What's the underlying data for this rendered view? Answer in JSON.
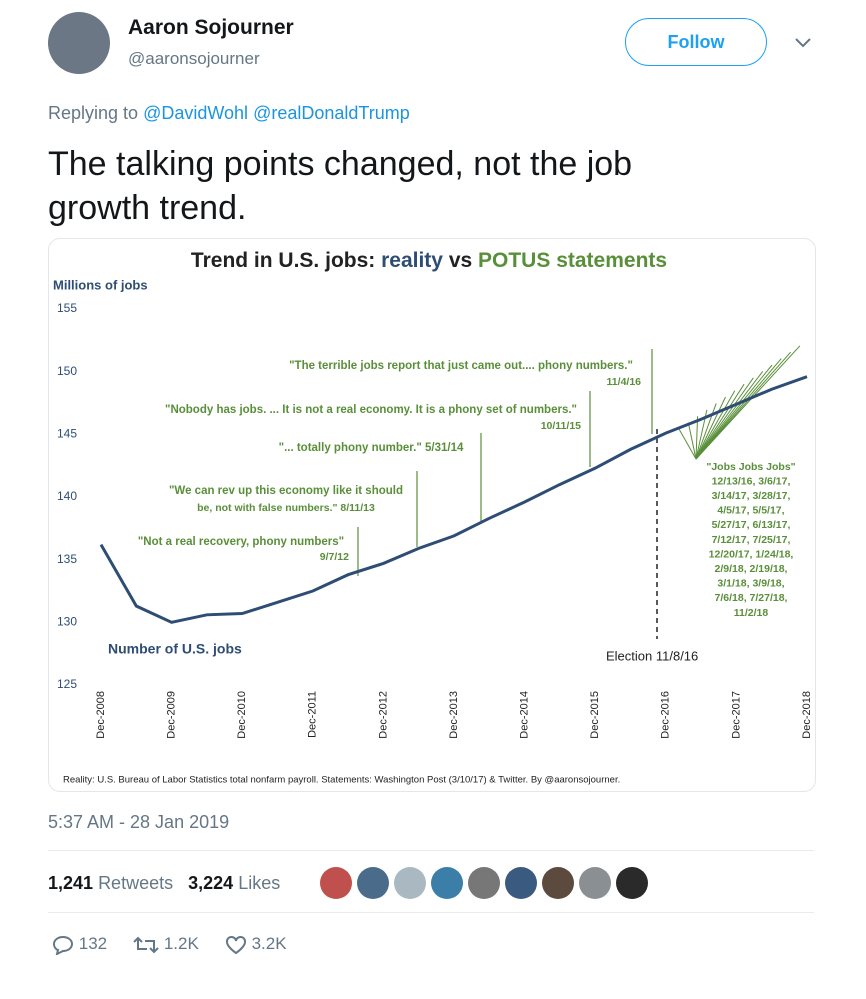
{
  "header": {
    "name": "Aaron Sojourner",
    "handle": "@aaronsojourner",
    "follow": "Follow"
  },
  "reply": {
    "prefix": "Replying to",
    "mentions": [
      "@DavidWohl",
      "@realDonaldTrump"
    ]
  },
  "text": "The talking points changed, not the job growth trend.",
  "chart_data": {
    "type": "line",
    "title_parts": [
      "Trend in U.S. jobs: ",
      "reality",
      " vs ",
      "POTUS statements"
    ],
    "y_label": "Millions of jobs",
    "series_label": "Number of U.S. jobs",
    "x": [
      "Dec-2008",
      "Jun-2009",
      "Dec-2009",
      "Jun-2010",
      "Dec-2010",
      "Jun-2011",
      "Dec-2011",
      "Jun-2012",
      "Dec-2012",
      "Jun-2013",
      "Dec-2013",
      "Jun-2014",
      "Dec-2014",
      "Jun-2015",
      "Dec-2015",
      "Jun-2016",
      "Dec-2016",
      "Jun-2017",
      "Dec-2017",
      "Jun-2018",
      "Dec-2018"
    ],
    "series": [
      {
        "name": "Number of U.S. jobs",
        "color": "#2e4d74",
        "values": [
          136.2,
          131.3,
          130.0,
          130.6,
          130.7,
          131.6,
          132.5,
          133.8,
          134.7,
          135.9,
          136.9,
          138.3,
          139.6,
          141.0,
          142.3,
          143.8,
          145.1,
          146.2,
          147.4,
          148.6,
          149.6
        ]
      }
    ],
    "xticks": [
      "Dec-2008",
      "Dec-2009",
      "Dec-2010",
      "Dec-2011",
      "Dec-2012",
      "Dec-2013",
      "Dec-2014",
      "Dec-2015",
      "Dec-2016",
      "Dec-2017",
      "Dec-2018"
    ],
    "ylim": [
      125,
      155
    ],
    "yticks": [
      125,
      130,
      135,
      140,
      145,
      150,
      155
    ],
    "annotation_color": "#5a8f3a",
    "annotations": [
      {
        "lines": [
          "\"Not a real recovery, phony numbers\"",
          "9/7/12"
        ]
      },
      {
        "lines": [
          "\"We can rev up this economy like it should",
          "be, not with false numbers.\" 8/11/13"
        ]
      },
      {
        "lines": [
          "\"... totally phony number.\" 5/31/14"
        ]
      },
      {
        "lines": [
          "\"Nobody has jobs. ... It is not a real economy. It is a phony set of numbers.\"",
          "10/11/15"
        ]
      },
      {
        "lines": [
          "\"The terrible jobs report that just came out.... phony numbers.\"",
          "11/4/16"
        ]
      },
      {
        "lines": [
          "\"Jobs Jobs Jobs\"",
          "12/13/16, 3/6/17,",
          "3/14/17, 3/28/17,",
          "4/5/17, 5/5/17,",
          "5/27/17, 6/13/17,",
          "7/12/17, 7/25/17,",
          "12/20/17, 1/24/18,",
          "2/9/18, 2/19/18,",
          "3/1/18, 3/9/18,",
          "7/6/18, 7/27/18,",
          "11/2/18"
        ]
      }
    ],
    "election": "Election 11/8/16",
    "source": "Reality: U.S. Bureau of Labor Statistics total nonfarm payroll. Statements: Washington Post (3/10/17) & Twitter. By @aaronsojourner."
  },
  "timestamp": "5:37 AM - 28 Jan 2019",
  "stats": {
    "retweets": "1,241",
    "retweets_label": "Retweets",
    "likes": "3,224",
    "likes_label": "Likes"
  },
  "actions": {
    "replies": "132",
    "retweets": "1.2K",
    "likes": "3.2K"
  }
}
